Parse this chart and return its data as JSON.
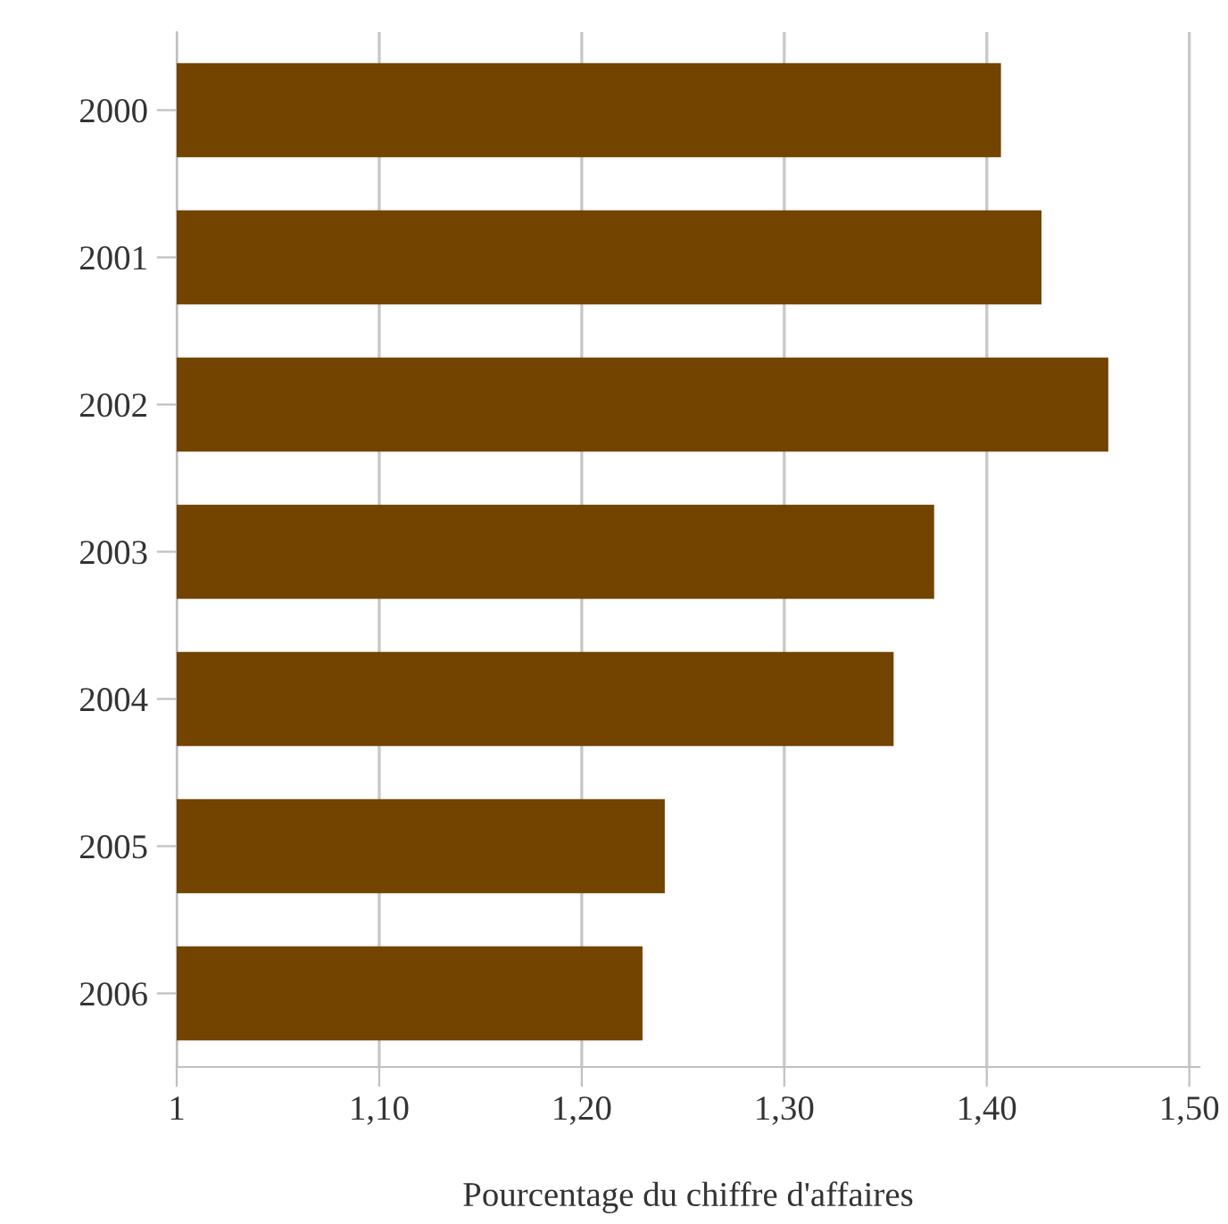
{
  "chart_data": {
    "type": "bar",
    "orientation": "horizontal",
    "xlabel": "Pourcentage du chiffre d'affaires",
    "categories": [
      "2000",
      "2001",
      "2002",
      "2003",
      "2004",
      "2005",
      "2006"
    ],
    "values": [
      1.407,
      1.427,
      1.46,
      1.374,
      1.354,
      1.241,
      1.23
    ],
    "color": "#734300",
    "xlim": [
      1,
      1.505
    ],
    "xticks": [
      {
        "value": 1,
        "label": "1"
      },
      {
        "value": 1.1,
        "label": "1,10"
      },
      {
        "value": 1.2,
        "label": "1,20"
      },
      {
        "value": 1.3,
        "label": "1,30"
      },
      {
        "value": 1.4,
        "label": "1,40"
      },
      {
        "value": 1.5,
        "label": "1,50"
      }
    ],
    "grid": "x"
  }
}
